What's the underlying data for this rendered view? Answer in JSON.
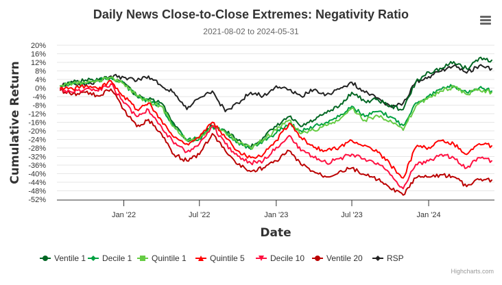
{
  "menu": {
    "icon": "hamburger-menu-icon"
  },
  "credits": "Highcharts.com",
  "chart_data": {
    "type": "line",
    "title": "Daily News Close-to-Close Extremes: Negativity Ratio",
    "subtitle": "2021-08-02 to 2024-05-31",
    "xlabel": "Date",
    "ylabel": "Cumulative Return",
    "ylim": [
      -52,
      20
    ],
    "ytick_step": 4,
    "yticks": [
      "20%",
      "16%",
      "12%",
      "8%",
      "4%",
      "0%",
      "-4%",
      "-8%",
      "-12%",
      "-16%",
      "-20%",
      "-24%",
      "-28%",
      "-32%",
      "-36%",
      "-40%",
      "-44%",
      "-48%",
      "-52%"
    ],
    "xrange": [
      "2021-08-02",
      "2024-05-31"
    ],
    "xticks": [
      {
        "date": "2022-01-01",
        "label": "Jan '22"
      },
      {
        "date": "2022-07-01",
        "label": "Jul '22"
      },
      {
        "date": "2023-01-01",
        "label": "Jan '23"
      },
      {
        "date": "2023-07-01",
        "label": "Jul '23"
      },
      {
        "date": "2024-01-01",
        "label": "Jan '24"
      }
    ],
    "grid": true,
    "legend": "bottom-center",
    "x": [
      "2021-08-02",
      "2021-09-01",
      "2021-10-01",
      "2021-11-01",
      "2021-12-01",
      "2022-01-01",
      "2022-02-01",
      "2022-03-01",
      "2022-04-01",
      "2022-05-01",
      "2022-06-01",
      "2022-07-01",
      "2022-08-01",
      "2022-09-01",
      "2022-10-01",
      "2022-11-01",
      "2022-12-01",
      "2023-01-01",
      "2023-02-01",
      "2023-03-01",
      "2023-04-01",
      "2023-05-01",
      "2023-06-01",
      "2023-07-01",
      "2023-08-01",
      "2023-09-01",
      "2023-10-01",
      "2023-11-01",
      "2023-12-01",
      "2024-01-01",
      "2024-02-01",
      "2024-03-01",
      "2024-04-01",
      "2024-05-01",
      "2024-05-31"
    ],
    "series": [
      {
        "name": "Ventile 1",
        "color": "#006622",
        "marker": "circle",
        "values": [
          1,
          2.7,
          3.7,
          3.7,
          5,
          2.7,
          -3.7,
          -5.3,
          -7,
          -16.5,
          -24.5,
          -23,
          -17.5,
          -20,
          -24.5,
          -27.7,
          -23,
          -18,
          -13.3,
          -18,
          -15,
          -11.7,
          -8.5,
          -2,
          -6.2,
          -5.3,
          -8.5,
          -10,
          2.7,
          7.5,
          9,
          12.3,
          9,
          14,
          13
        ]
      },
      {
        "name": "Decile 1",
        "color": "#00a040",
        "marker": "diamond",
        "values": [
          1,
          2.3,
          2.3,
          3.4,
          5,
          2,
          -3.7,
          -6.2,
          -8.5,
          -18,
          -24.5,
          -23.8,
          -18,
          -20.6,
          -25.4,
          -28.6,
          -24.5,
          -21,
          -16.5,
          -20,
          -18,
          -16,
          -13.3,
          -8.5,
          -13.3,
          -11,
          -13.3,
          -17.5,
          -7,
          -3.7,
          -0.5,
          1,
          -2,
          0,
          -1.4
        ]
      },
      {
        "name": "Quintile 1",
        "color": "#66cc44",
        "marker": "square",
        "values": [
          1,
          2.3,
          2.3,
          3.4,
          5,
          2,
          -3.7,
          -6.2,
          -8.5,
          -18,
          -24.5,
          -23.8,
          -18,
          -20.6,
          -25.4,
          -28,
          -24,
          -19.7,
          -15,
          -21.3,
          -19.7,
          -17.5,
          -15,
          -9.5,
          -15,
          -13,
          -15,
          -19.7,
          -8.5,
          -4.3,
          -1.4,
          0.5,
          -3,
          -0.6,
          -2
        ]
      },
      {
        "name": "Quintile 5",
        "color": "#ff0000",
        "marker": "triangle",
        "values": [
          0,
          -0.5,
          1,
          -0.5,
          3.4,
          -3.7,
          -10,
          -7,
          -15,
          -23,
          -26,
          -23,
          -16,
          -23,
          -29.3,
          -32.5,
          -31,
          -24.5,
          -16.5,
          -23,
          -27.7,
          -29.3,
          -27.7,
          -24.5,
          -26.7,
          -30,
          -35.7,
          -42,
          -27.7,
          -27.7,
          -24.5,
          -26,
          -31,
          -26,
          -27
        ]
      },
      {
        "name": "Decile 10",
        "color": "#ff1040",
        "marker": "triangle-down",
        "values": [
          -0.5,
          -2,
          -0.5,
          -1.4,
          2,
          -7,
          -13.3,
          -10,
          -18,
          -26,
          -29.8,
          -26,
          -17.5,
          -26,
          -31.8,
          -35,
          -34,
          -27.7,
          -22.2,
          -29.3,
          -32.5,
          -35,
          -33,
          -30.9,
          -33,
          -35,
          -40.5,
          -47,
          -35.7,
          -34,
          -31,
          -32.5,
          -37.3,
          -32.5,
          -34
        ]
      },
      {
        "name": "Ventile 20",
        "color": "#bb0000",
        "marker": "circle",
        "values": [
          -1,
          -2.7,
          -2,
          -3.7,
          -0.5,
          -10,
          -18,
          -14.7,
          -21.3,
          -31,
          -34,
          -31,
          -21.3,
          -29.3,
          -35.7,
          -39,
          -37.3,
          -34,
          -29.3,
          -35.7,
          -39,
          -41.5,
          -39,
          -37.3,
          -40.5,
          -42.8,
          -47,
          -50,
          -42,
          -41.5,
          -40.5,
          -41.5,
          -46,
          -42.8,
          -43
        ]
      },
      {
        "name": "RSP",
        "color": "#222222",
        "marker": "diamond",
        "values": [
          1,
          2.7,
          1,
          3.7,
          5.6,
          5,
          3.4,
          5.6,
          1,
          -2,
          -10,
          -4.6,
          -1.4,
          -11,
          -7,
          -2,
          -3.7,
          1,
          -0.8,
          -3.7,
          -0.8,
          -3,
          -0.5,
          2.7,
          -2,
          -4.6,
          -8.5,
          -7,
          2.7,
          5.3,
          8,
          10.4,
          7,
          10.4,
          9
        ]
      }
    ]
  }
}
